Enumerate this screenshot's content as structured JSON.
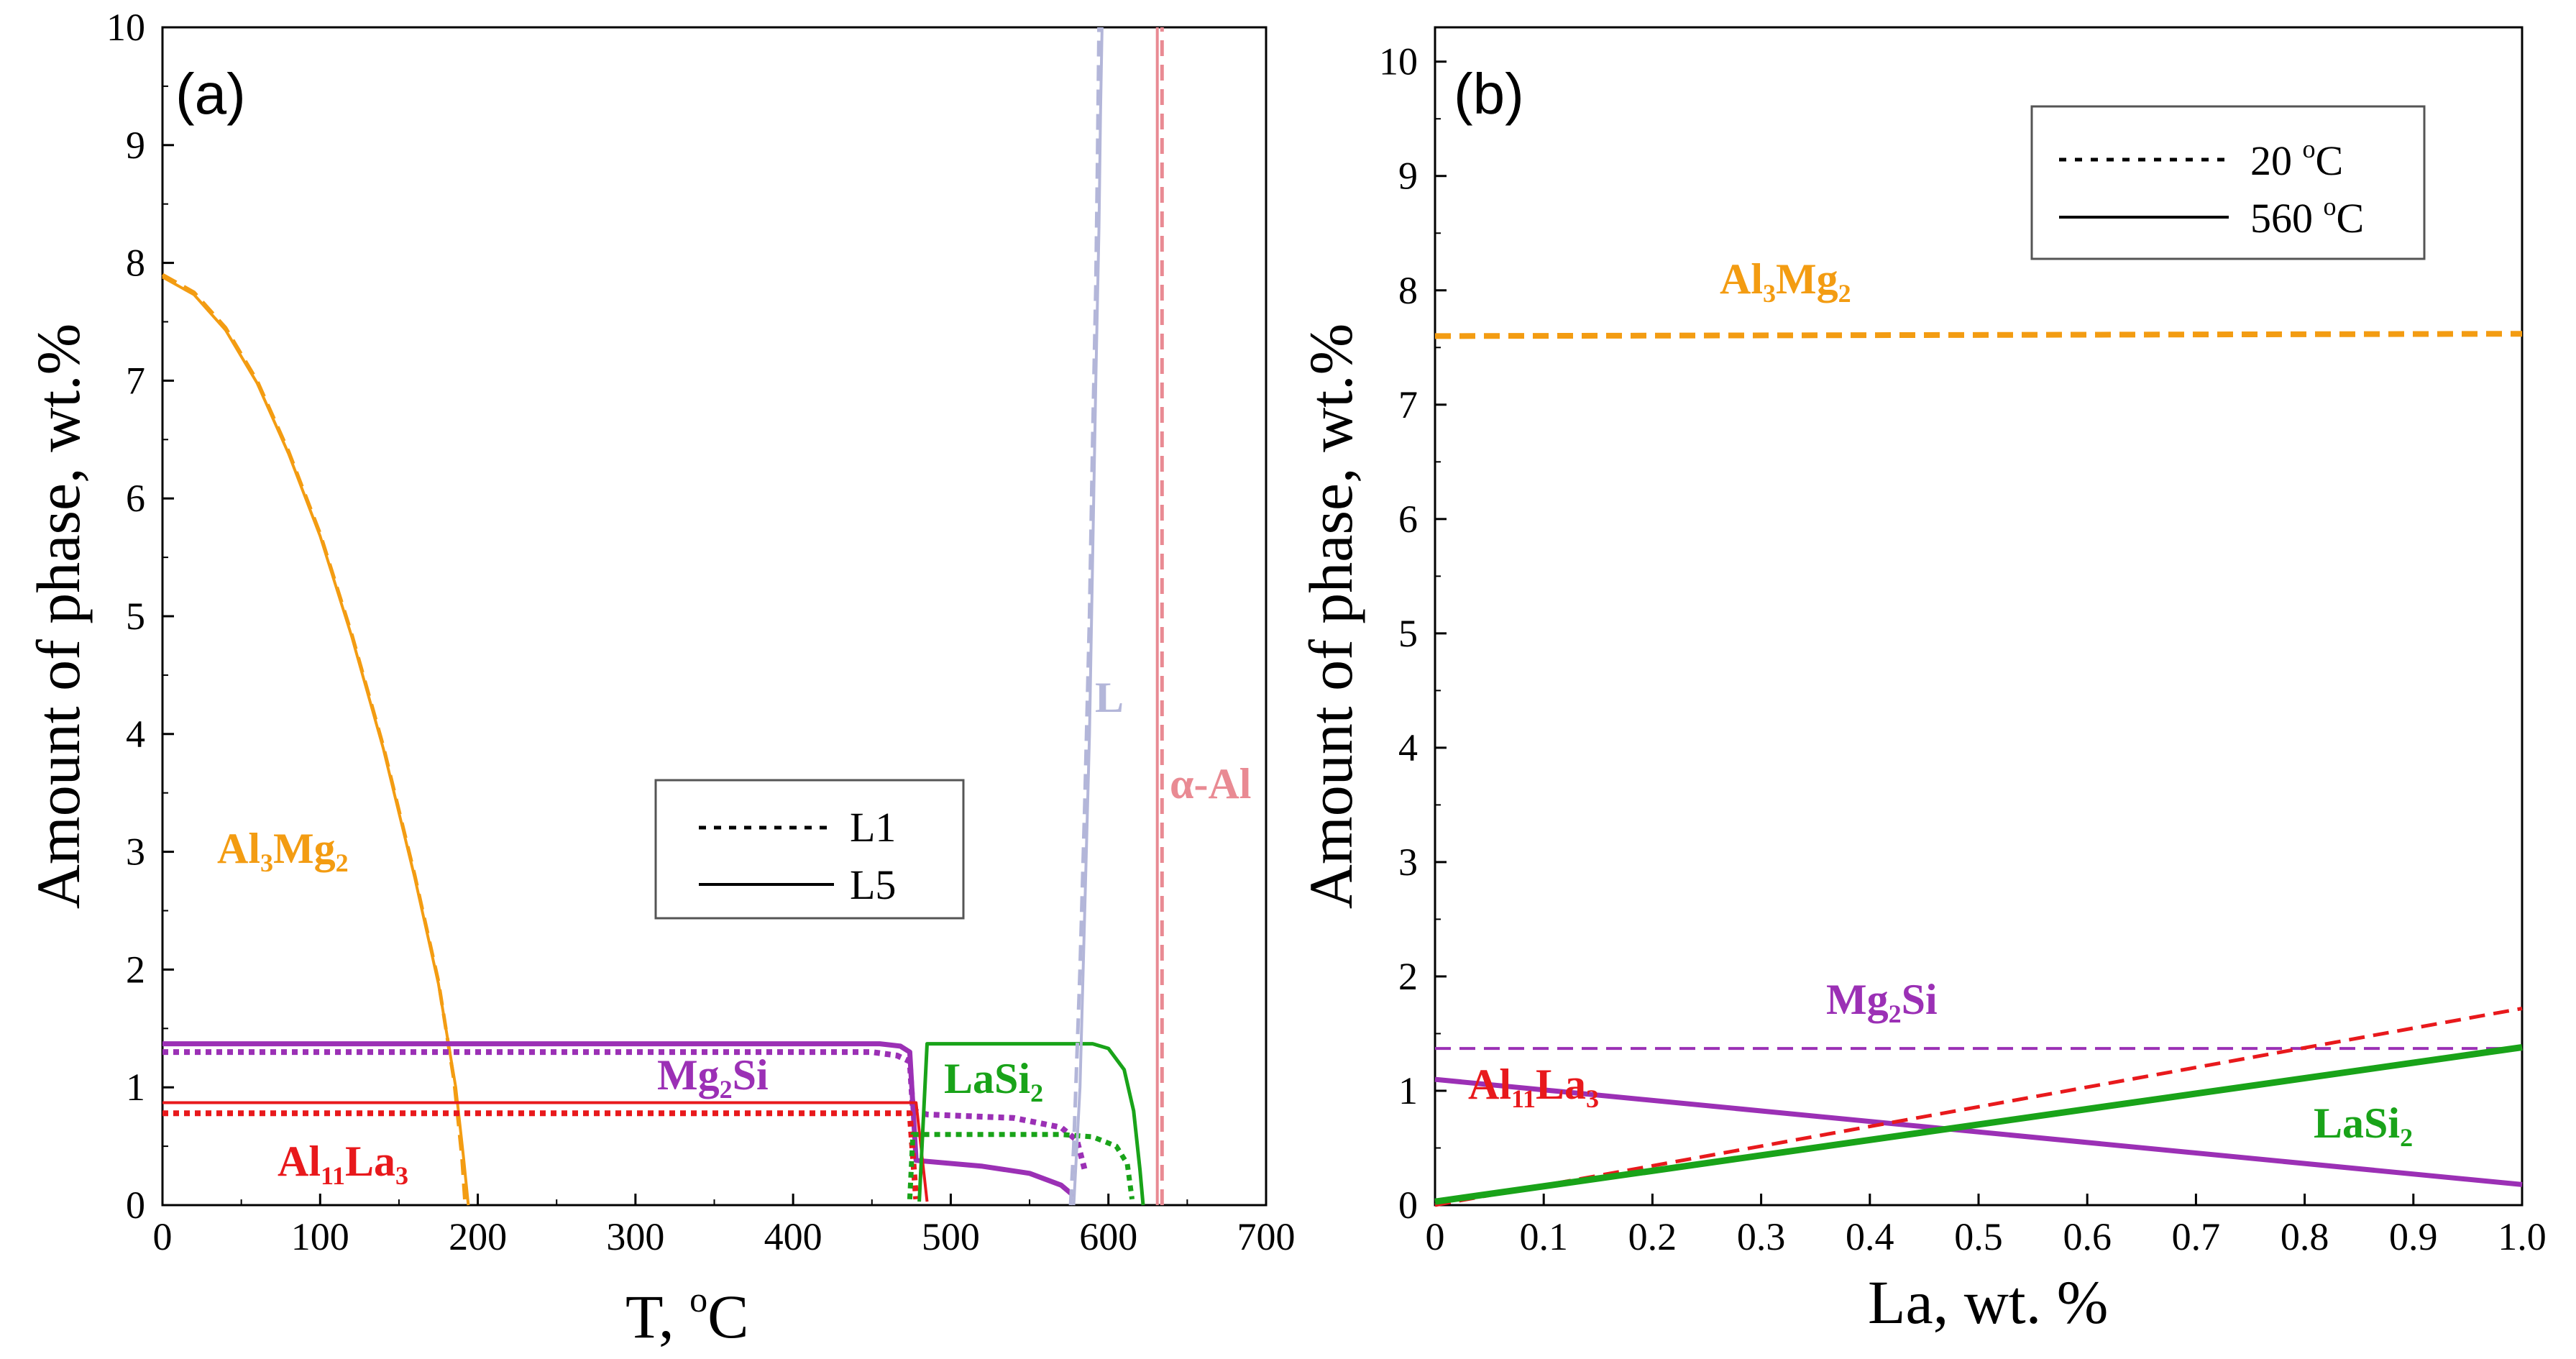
{
  "colors": {
    "Al3Mg2": "#f39c12",
    "Mg2Si": "#9b30b5",
    "Al11La3": "#e8191c",
    "LaSi2": "#19a319",
    "L": "#b3b6d9",
    "alphaAl": "#e98a93"
  },
  "chart_data": [
    {
      "type": "line",
      "panel_label": "(a)",
      "xlabel": "T, °C",
      "xlabel_main": "T, ",
      "xlabel_sup": "o",
      "xlabel_unit": "C",
      "ylabel": "Amount of phase, wt.%",
      "xlim": [
        0,
        700
      ],
      "ylim": [
        0,
        10
      ],
      "x_tick_labels": [
        "0",
        "100",
        "200",
        "300",
        "400",
        "500",
        "600",
        "700"
      ],
      "y_tick_labels": [
        "0",
        "1",
        "2",
        "3",
        "4",
        "5",
        "6",
        "7",
        "8",
        "9",
        "10"
      ],
      "legend": {
        "position": "center-right",
        "entries": [
          {
            "label": "L1",
            "style": "dotted"
          },
          {
            "label": "L5",
            "style": "solid"
          }
        ]
      },
      "phase_labels": [
        {
          "main": "Al",
          "sub1": "3",
          "mid": "Mg",
          "sub2": "2",
          "color_key": "Al3Mg2"
        },
        {
          "main": "Mg",
          "sub1": "2",
          "mid": "Si",
          "sub2": "",
          "color_key": "Mg2Si"
        },
        {
          "main": "Al",
          "sub1": "11",
          "mid": "La",
          "sub2": "3",
          "color_key": "Al11La3"
        },
        {
          "main": "LaSi",
          "sub1": "2",
          "mid": "",
          "sub2": "",
          "color_key": "LaSi2"
        },
        {
          "main": "L",
          "sub1": "",
          "mid": "",
          "sub2": "",
          "color_key": "L"
        },
        {
          "main": "α-Al",
          "sub1": "",
          "mid": "",
          "sub2": "",
          "color_key": "alphaAl"
        }
      ],
      "series": [
        {
          "name": "Al3Mg2 L1",
          "color_key": "Al3Mg2",
          "style": "dashed",
          "width": 5,
          "points": [
            [
              0,
              7.9
            ],
            [
              20,
              7.75
            ],
            [
              40,
              7.45
            ],
            [
              60,
              7.0
            ],
            [
              80,
              6.4
            ],
            [
              100,
              5.7
            ],
            [
              120,
              4.85
            ],
            [
              140,
              3.9
            ],
            [
              160,
              2.8
            ],
            [
              175,
              1.9
            ],
            [
              185,
              1.05
            ],
            [
              190,
              0.4
            ],
            [
              192,
              0
            ]
          ]
        },
        {
          "name": "Al3Mg2 L5",
          "color_key": "Al3Mg2",
          "style": "solid",
          "width": 4,
          "points": [
            [
              0,
              7.88
            ],
            [
              20,
              7.73
            ],
            [
              40,
              7.43
            ],
            [
              60,
              6.98
            ],
            [
              80,
              6.38
            ],
            [
              100,
              5.68
            ],
            [
              120,
              4.83
            ],
            [
              140,
              3.88
            ],
            [
              160,
              2.78
            ],
            [
              175,
              1.88
            ],
            [
              186,
              1.0
            ],
            [
              191,
              0.4
            ],
            [
              194,
              0
            ]
          ]
        },
        {
          "name": "Mg2Si L1",
          "color_key": "Mg2Si",
          "style": "dotted",
          "width": 8,
          "points": [
            [
              0,
              1.3
            ],
            [
              450,
              1.3
            ],
            [
              466,
              1.27
            ],
            [
              474,
              1.22
            ],
            [
              476,
              0.8
            ],
            [
              485,
              0.77
            ],
            [
              540,
              0.74
            ],
            [
              570,
              0.66
            ],
            [
              580,
              0.55
            ],
            [
              585,
              0.3
            ]
          ]
        },
        {
          "name": "Mg2Si L5",
          "color_key": "Mg2Si",
          "style": "solid",
          "width": 7,
          "points": [
            [
              0,
              1.37
            ],
            [
              455,
              1.37
            ],
            [
              468,
              1.35
            ],
            [
              474,
              1.3
            ],
            [
              478,
              0.38
            ],
            [
              520,
              0.33
            ],
            [
              550,
              0.27
            ],
            [
              570,
              0.17
            ],
            [
              578,
              0.08
            ]
          ]
        },
        {
          "name": "Al11La3 L1",
          "color_key": "Al11La3",
          "style": "dotted",
          "width": 8,
          "points": [
            [
              0,
              0.78
            ],
            [
              474,
              0.78
            ],
            [
              478,
              0.05
            ]
          ]
        },
        {
          "name": "Al11La3 L5",
          "color_key": "Al11La3",
          "style": "solid",
          "width": 4,
          "points": [
            [
              0,
              0.87
            ],
            [
              478,
              0.87
            ],
            [
              485,
              0.03
            ]
          ]
        },
        {
          "name": "LaSi2 L1",
          "color_key": "LaSi2",
          "style": "dotted",
          "width": 7,
          "points": [
            [
              474,
              0.05
            ],
            [
              476,
              0.6
            ],
            [
              570,
              0.6
            ],
            [
              590,
              0.58
            ],
            [
              605,
              0.5
            ],
            [
              612,
              0.35
            ],
            [
              615,
              0.05
            ]
          ]
        },
        {
          "name": "LaSi2 L5",
          "color_key": "LaSi2",
          "style": "solid",
          "width": 5,
          "points": [
            [
              480,
              0.03
            ],
            [
              485,
              1.37
            ],
            [
              590,
              1.37
            ],
            [
              600,
              1.33
            ],
            [
              610,
              1.15
            ],
            [
              616,
              0.8
            ],
            [
              620,
              0.3
            ],
            [
              622,
              0
            ]
          ]
        },
        {
          "name": "L L1",
          "color_key": "L",
          "style": "dashed",
          "width": 5,
          "points": [
            [
              576,
              0
            ],
            [
              578,
              0.5
            ],
            [
              582,
              2.0
            ],
            [
              585,
              3.4
            ],
            [
              588,
              5.0
            ],
            [
              590,
              6.5
            ],
            [
              592,
              7.8
            ],
            [
              593,
              8.8
            ],
            [
              594,
              10
            ]
          ]
        },
        {
          "name": "L L5",
          "color_key": "L",
          "style": "solid",
          "width": 4,
          "points": [
            [
              578,
              0
            ],
            [
              582,
              1.0
            ],
            [
              585,
              2.5
            ],
            [
              588,
              4.0
            ],
            [
              590,
              5.5
            ],
            [
              592,
              7.0
            ],
            [
              594,
              8.3
            ],
            [
              595,
              9.3
            ],
            [
              596,
              10
            ]
          ]
        },
        {
          "name": "alpha-Al L1",
          "color_key": "alphaAl",
          "style": "dashed",
          "width": 5,
          "points": [
            [
              634,
              0
            ],
            [
              634,
              10
            ]
          ]
        },
        {
          "name": "alpha-Al L5",
          "color_key": "alphaAl",
          "style": "solid",
          "width": 4,
          "points": [
            [
              631,
              0
            ],
            [
              631,
              10
            ]
          ]
        }
      ]
    },
    {
      "type": "line",
      "panel_label": "(b)",
      "xlabel": "La, wt. %",
      "ylabel": "Amount of phase, wt.%",
      "xlim": [
        0,
        1.0
      ],
      "ylim": [
        0,
        10.3
      ],
      "x_tick_labels": [
        "0",
        "0.1",
        "0.2",
        "0.3",
        "0.4",
        "0.5",
        "0.6",
        "0.7",
        "0.8",
        "0.9",
        "1.0"
      ],
      "y_tick_labels": [
        "0",
        "1",
        "2",
        "3",
        "4",
        "5",
        "6",
        "7",
        "8",
        "9",
        "10"
      ],
      "legend": {
        "position": "top-right",
        "entries": [
          {
            "label": "20 °C",
            "main": "20 ",
            "sup": "o",
            "unit": "C",
            "style": "dotted"
          },
          {
            "label": "560 °C",
            "main": "560 ",
            "sup": "o",
            "unit": "C",
            "style": "solid"
          }
        ]
      },
      "phase_labels": [
        {
          "main": "Al",
          "sub1": "3",
          "mid": "Mg",
          "sub2": "2",
          "color_key": "Al3Mg2"
        },
        {
          "main": "Mg",
          "sub1": "2",
          "mid": "Si",
          "sub2": "",
          "color_key": "Mg2Si"
        },
        {
          "main": "Al",
          "sub1": "11",
          "mid": "La",
          "sub2": "3",
          "color_key": "Al11La3"
        },
        {
          "main": "LaSi",
          "sub1": "2",
          "mid": "",
          "sub2": "",
          "color_key": "LaSi2"
        }
      ],
      "series": [
        {
          "name": "Al3Mg2 20C",
          "color_key": "Al3Mg2",
          "style": "dashed",
          "width": 8,
          "points": [
            [
              0,
              7.6
            ],
            [
              1.0,
              7.62
            ]
          ]
        },
        {
          "name": "Mg2Si 20C",
          "color_key": "Mg2Si",
          "style": "dashed",
          "width": 4,
          "points": [
            [
              0,
              1.37
            ],
            [
              1.0,
              1.37
            ]
          ]
        },
        {
          "name": "Mg2Si 560C",
          "color_key": "Mg2Si",
          "style": "solid",
          "width": 7,
          "points": [
            [
              0,
              1.1
            ],
            [
              1.0,
              0.18
            ]
          ]
        },
        {
          "name": "Al11La3 20C",
          "color_key": "Al11La3",
          "style": "dashed",
          "width": 5,
          "points": [
            [
              0,
              0
            ],
            [
              1.0,
              1.72
            ]
          ]
        },
        {
          "name": "LaSi2 560C",
          "color_key": "LaSi2",
          "style": "solid",
          "width": 9,
          "points": [
            [
              0,
              0.03
            ],
            [
              1.0,
              1.38
            ]
          ]
        }
      ]
    }
  ]
}
